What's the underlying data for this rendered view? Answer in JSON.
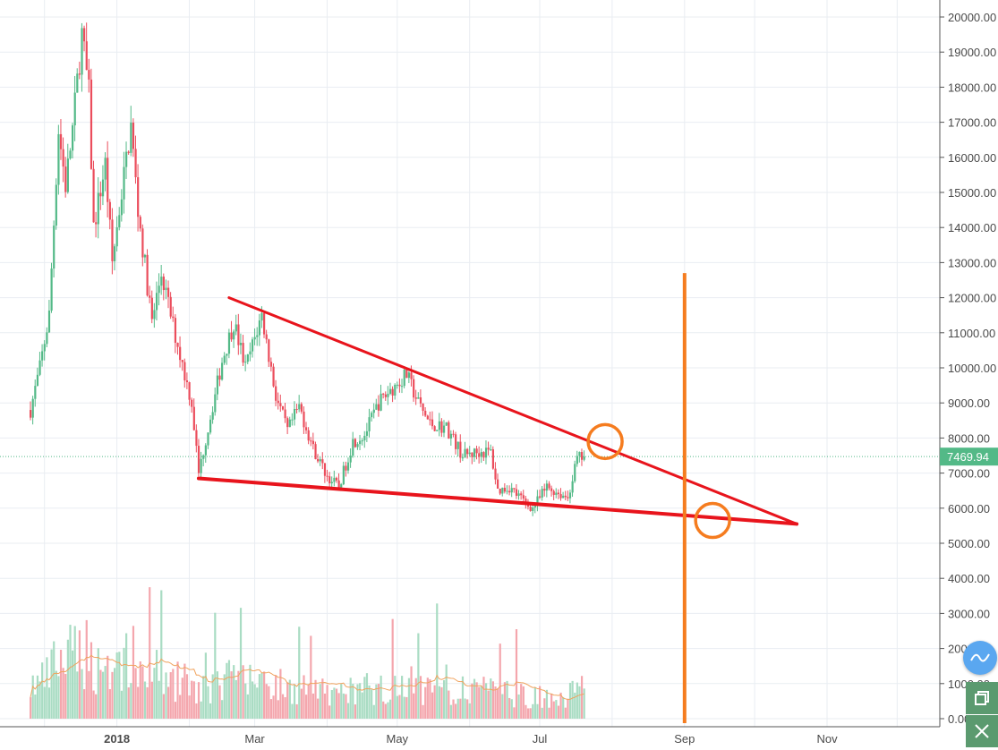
{
  "chart_data": {
    "type": "candlestick",
    "symbol_hint": "",
    "y_axis": {
      "ticks": [
        "20000.00",
        "19000.00",
        "18000.00",
        "17000.00",
        "16000.00",
        "15000.00",
        "14000.00",
        "13000.00",
        "12000.00",
        "11000.00",
        "10000.00",
        "9000.00",
        "8000.00",
        "7000.00",
        "6000.00",
        "5000.00",
        "4000.00",
        "3000.00",
        "2000.00",
        "1000.00",
        "0.00"
      ],
      "range": [
        0,
        20000
      ]
    },
    "x_axis": {
      "ticks": [
        "2018",
        "Mar",
        "May",
        "Jul",
        "Sep",
        "Nov"
      ]
    },
    "last_price": "7469.94",
    "price_path": [
      [
        "2017-11-25",
        8800
      ],
      [
        "2017-11-29",
        10000
      ],
      [
        "2017-12-03",
        11500
      ],
      [
        "2017-12-07",
        16800
      ],
      [
        "2017-12-10",
        15200
      ],
      [
        "2017-12-13",
        16800
      ],
      [
        "2017-12-17",
        19500
      ],
      [
        "2017-12-20",
        17800
      ],
      [
        "2017-12-22",
        14000
      ],
      [
        "2017-12-27",
        15800
      ],
      [
        "2017-12-30",
        13000
      ],
      [
        "2018-01-03",
        15000
      ],
      [
        "2018-01-07",
        16900
      ],
      [
        "2018-01-10",
        14500
      ],
      [
        "2018-01-16",
        11300
      ],
      [
        "2018-01-20",
        12700
      ],
      [
        "2018-01-25",
        11200
      ],
      [
        "2018-02-02",
        9000
      ],
      [
        "2018-02-05",
        7000
      ],
      [
        "2018-02-10",
        8600
      ],
      [
        "2018-02-15",
        10200
      ],
      [
        "2018-02-20",
        11300
      ],
      [
        "2018-02-25",
        10000
      ],
      [
        "2018-03-04",
        11500
      ],
      [
        "2018-03-10",
        9200
      ],
      [
        "2018-03-15",
        8200
      ],
      [
        "2018-03-20",
        8900
      ],
      [
        "2018-03-26",
        7700
      ],
      [
        "2018-04-01",
        6900
      ],
      [
        "2018-04-06",
        6600
      ],
      [
        "2018-04-12",
        7900
      ],
      [
        "2018-04-17",
        8100
      ],
      [
        "2018-04-23",
        9000
      ],
      [
        "2018-04-27",
        9300
      ],
      [
        "2018-05-05",
        9800
      ],
      [
        "2018-05-10",
        9000
      ],
      [
        "2018-05-15",
        8400
      ],
      [
        "2018-05-22",
        8300
      ],
      [
        "2018-05-29",
        7500
      ],
      [
        "2018-06-05",
        7600
      ],
      [
        "2018-06-10",
        7600
      ],
      [
        "2018-06-13",
        6500
      ],
      [
        "2018-06-18",
        6600
      ],
      [
        "2018-06-24",
        6200
      ],
      [
        "2018-06-28",
        6000
      ],
      [
        "2018-07-04",
        6600
      ],
      [
        "2018-07-10",
        6400
      ],
      [
        "2018-07-13",
        6300
      ],
      [
        "2018-07-17",
        7400
      ],
      [
        "2018-07-20",
        7469.94
      ]
    ],
    "volume_scale": [
      0,
      20000
    ],
    "annotations": {
      "upper_trendline": [
        [
          "2018-02-18",
          12000
        ],
        [
          "2018-10-19",
          5550
        ]
      ],
      "lower_trendline": [
        [
          "2018-02-05",
          6850
        ],
        [
          "2018-10-19",
          5550
        ]
      ],
      "vertical_line_date": "2018-09-01",
      "circles": [
        [
          "2018-07-29",
          7900
        ],
        [
          "2018-09-13",
          5650
        ]
      ],
      "colors": {
        "trendline": "#e8141c",
        "marker": "#f57c1f"
      }
    },
    "colors": {
      "up": "#53b987",
      "down": "#eb4d5c",
      "volume_up": "#a9dcc3",
      "volume_down": "#f4a6ad",
      "ma": "#f0a35e",
      "grid": "#e9edf2",
      "price_label": "#53b987"
    }
  },
  "tools": [
    "restore-icon",
    "close-icon"
  ],
  "fab_icon": "chart-line-icon"
}
